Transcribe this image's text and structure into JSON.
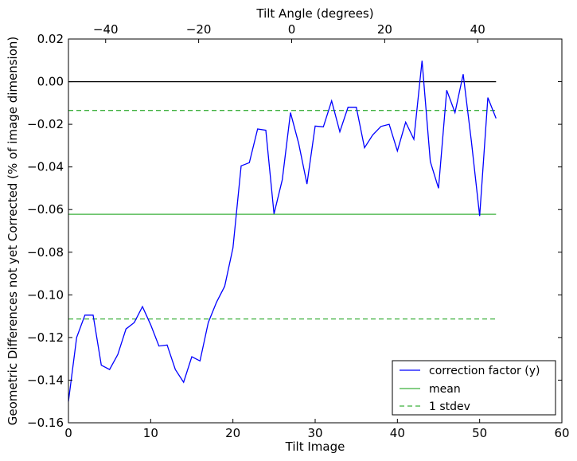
{
  "chart_data": {
    "type": "line",
    "title": "",
    "xlabel": "Tilt Image",
    "ylabel": "Geometric Differences not yet Corrected (% of image dimension)",
    "top_xlabel": "Tilt Angle (degrees)",
    "xlim": [
      0,
      60
    ],
    "ylim": [
      -0.16,
      0.02
    ],
    "top_xlim": [
      -48,
      58.1
    ],
    "xticks": [
      0,
      10,
      20,
      30,
      40,
      50,
      60
    ],
    "xtick_labels": [
      "0",
      "10",
      "20",
      "30",
      "40",
      "50",
      "60"
    ],
    "yticks": [
      0.02,
      0.0,
      -0.02,
      -0.04,
      -0.06,
      -0.08,
      -0.1,
      -0.12,
      -0.14,
      -0.16
    ],
    "ytick_labels": [
      "0.02",
      "0.00",
      "−0.02",
      "−0.04",
      "−0.06",
      "−0.08",
      "−0.10",
      "−0.12",
      "−0.14",
      "−0.16"
    ],
    "top_xticks": [
      -40,
      -20,
      0,
      20,
      40
    ],
    "top_xtick_labels": [
      "−40",
      "−20",
      "0",
      "20",
      "40"
    ],
    "grid": false,
    "legend_position": "lower-right",
    "series": [
      {
        "name": "correction factor (y)",
        "color": "#0000ff",
        "style": "solid",
        "x": [
          0,
          1,
          2,
          3,
          4,
          5,
          6,
          7,
          8,
          9,
          10,
          11,
          12,
          13,
          14,
          15,
          16,
          17,
          18,
          19,
          20,
          21,
          22,
          23,
          24,
          25,
          26,
          27,
          28,
          29,
          30,
          31,
          32,
          33,
          34,
          35,
          36,
          37,
          38,
          39,
          40,
          41,
          42,
          43,
          44,
          45,
          46,
          47,
          48,
          49,
          50,
          51,
          52
        ],
        "values": [
          -0.15,
          -0.12,
          -0.1095,
          -0.1095,
          -0.133,
          -0.135,
          -0.128,
          -0.116,
          -0.113,
          -0.1055,
          -0.114,
          -0.124,
          -0.1235,
          -0.135,
          -0.141,
          -0.129,
          -0.131,
          -0.113,
          -0.1035,
          -0.096,
          -0.078,
          -0.0395,
          -0.038,
          -0.0222,
          -0.0228,
          -0.062,
          -0.046,
          -0.0145,
          -0.029,
          -0.048,
          -0.0208,
          -0.0212,
          -0.009,
          -0.0235,
          -0.012,
          -0.012,
          -0.031,
          -0.025,
          -0.021,
          -0.02,
          -0.0325,
          -0.019,
          -0.027,
          0.0098,
          -0.0375,
          -0.05,
          -0.004,
          -0.0145,
          0.0035,
          -0.028,
          -0.063,
          -0.0075,
          -0.0172
        ]
      },
      {
        "name": "mean",
        "color": "#3cb03c",
        "style": "solid",
        "x": [
          0,
          52
        ],
        "values": [
          -0.0622,
          -0.0622
        ]
      },
      {
        "name": "1 stdev",
        "color": "#3cb03c",
        "style": "dashed",
        "x": [
          0,
          52
        ],
        "values": [
          -0.0135,
          -0.0135
        ]
      },
      {
        "name": "1 stdev (lower)",
        "color": "#3cb03c",
        "style": "dashed",
        "x": [
          0,
          52
        ],
        "values": [
          -0.1113,
          -0.1113
        ],
        "legend": false
      },
      {
        "name": "zero",
        "color": "#000000",
        "style": "solid",
        "x": [
          0,
          52
        ],
        "values": [
          0,
          0
        ],
        "legend": false
      }
    ],
    "legend": [
      "correction factor (y)",
      "mean",
      "1 stdev"
    ]
  }
}
